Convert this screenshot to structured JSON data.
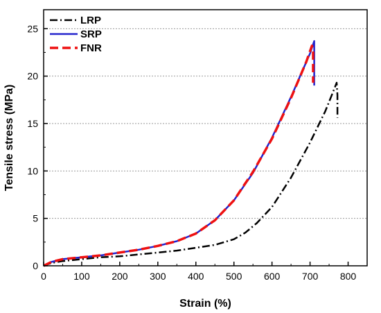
{
  "chart_data": {
    "type": "line",
    "xlabel": "Strain (%)",
    "ylabel": "Tensile stress (MPa)",
    "xlim": [
      0,
      850
    ],
    "ylim": [
      0,
      27
    ],
    "xticks": [
      0,
      100,
      200,
      300,
      400,
      500,
      600,
      700,
      800
    ],
    "yticks": [
      0,
      5,
      10,
      15,
      20,
      25
    ],
    "grid": "horizontal dotted",
    "legend_position": "top-left",
    "series": [
      {
        "name": "LRP",
        "color": "#000000",
        "style": "dash-dot",
        "x": [
          0,
          20,
          50,
          100,
          150,
          200,
          250,
          300,
          350,
          400,
          450,
          500,
          530,
          560,
          600,
          650,
          700,
          740,
          760,
          770,
          772,
          772
        ],
        "y": [
          0,
          0.3,
          0.5,
          0.7,
          0.9,
          1.0,
          1.2,
          1.4,
          1.6,
          1.9,
          2.2,
          2.8,
          3.5,
          4.5,
          6.2,
          9.3,
          13.0,
          16.3,
          18.3,
          19.3,
          18.0,
          15.6
        ]
      },
      {
        "name": "SRP",
        "color": "#2222cc",
        "style": "solid",
        "x": [
          0,
          20,
          50,
          100,
          150,
          200,
          250,
          300,
          350,
          400,
          450,
          500,
          550,
          600,
          650,
          700,
          711,
          711
        ],
        "y": [
          0,
          0.4,
          0.7,
          0.9,
          1.1,
          1.4,
          1.7,
          2.1,
          2.6,
          3.4,
          4.8,
          6.9,
          9.8,
          13.5,
          17.8,
          22.4,
          23.7,
          19.0
        ]
      },
      {
        "name": "FNR",
        "color": "#ee1111",
        "style": "dashed",
        "x": [
          0,
          20,
          50,
          100,
          150,
          200,
          250,
          300,
          350,
          400,
          450,
          500,
          550,
          600,
          650,
          690,
          705,
          708,
          708
        ],
        "y": [
          0,
          0.4,
          0.7,
          0.9,
          1.1,
          1.4,
          1.7,
          2.1,
          2.6,
          3.4,
          4.8,
          6.9,
          9.9,
          13.4,
          17.7,
          21.5,
          23.2,
          22.5,
          19.3
        ]
      }
    ]
  }
}
